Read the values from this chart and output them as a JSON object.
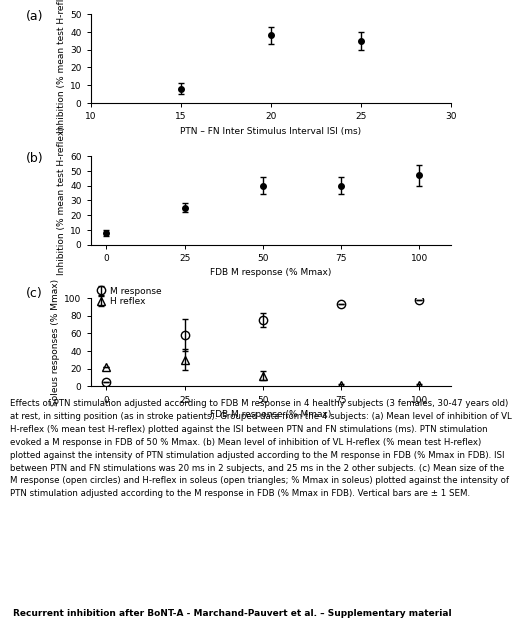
{
  "panel_a": {
    "x": [
      15,
      20,
      25
    ],
    "y": [
      8,
      38,
      35
    ],
    "yerr": [
      3,
      5,
      5
    ],
    "xlabel": "PTN – FN Inter Stimulus Interval ISI (ms)",
    "ylabel": "Inhibition (% mean test H-reflex)",
    "xlim": [
      10,
      30
    ],
    "ylim": [
      0,
      50
    ],
    "xticks": [
      10,
      15,
      20,
      25,
      30
    ],
    "yticks": [
      0,
      10,
      20,
      30,
      40,
      50
    ],
    "label": "(a)"
  },
  "panel_b": {
    "x": [
      0,
      25,
      50,
      75,
      100
    ],
    "y": [
      8,
      25,
      40,
      40,
      47
    ],
    "yerr": [
      2,
      3,
      6,
      6,
      7
    ],
    "xlabel": "FDB M response (% Mmax)",
    "ylabel": "Inhibition (% mean test H-reflex)",
    "xlim": [
      -5,
      110
    ],
    "ylim": [
      0,
      60
    ],
    "xticks": [
      0,
      25,
      50,
      75,
      100
    ],
    "yticks": [
      0,
      10,
      20,
      30,
      40,
      50,
      60
    ],
    "label": "(b)"
  },
  "panel_c": {
    "x_circle": [
      0,
      25,
      50,
      75,
      100
    ],
    "y_circle": [
      5,
      58,
      75,
      93,
      97
    ],
    "yerr_circle": [
      0,
      18,
      8,
      0,
      0
    ],
    "x_triangle": [
      0,
      25,
      50,
      75,
      100
    ],
    "y_triangle": [
      22,
      30,
      12,
      2,
      2
    ],
    "yerr_triangle": [
      0,
      12,
      5,
      1,
      1
    ],
    "xlabel": "FDB M response (% Mmax)",
    "ylabel": "Soleus responses (% Mmax)",
    "xlim": [
      -5,
      110
    ],
    "ylim": [
      0,
      100
    ],
    "xticks": [
      0,
      25,
      50,
      75,
      100
    ],
    "yticks": [
      0,
      20,
      40,
      60,
      80,
      100
    ],
    "label": "(c)",
    "legend_circle": "M response",
    "legend_triangle": "H reflex"
  },
  "caption_lines": [
    "Effects of PTN stimulation adjusted according to FDB M response in 4 healthy subjects (3 females, 30-47 years old)",
    "at rest, in sitting position (as in stroke patients). Grouped data from the 4 subjects: (a) Mean level of inhibition of VL",
    "H-reflex (% mean test H-reflex) plotted against the ISI between PTN and FN stimulations (ms). PTN stimulation",
    "evoked a M response in FDB of 50 % Mmax. (b) Mean level of inhibition of VL H-reflex (% mean test H-reflex)",
    "plotted against the intensity of PTN stimulation adjusted according to the M response in FDB (% Mmax in FDB). ISI",
    "between PTN and FN stimulations was 20 ms in 2 subjects, and 25 ms in the 2 other subjects. (c) Mean size of the",
    "M response (open circles) and H-reflex in soleus (open triangles; % Mmax in soleus) plotted against the intensity of",
    "PTN stimulation adjusted according to the M response in FDB (% Mmax in FDB). Vertical bars are ± 1 SEM."
  ],
  "footer": "Recurrent inhibition after BoNT-A - Marchand-Pauvert et al. – Supplementary material"
}
